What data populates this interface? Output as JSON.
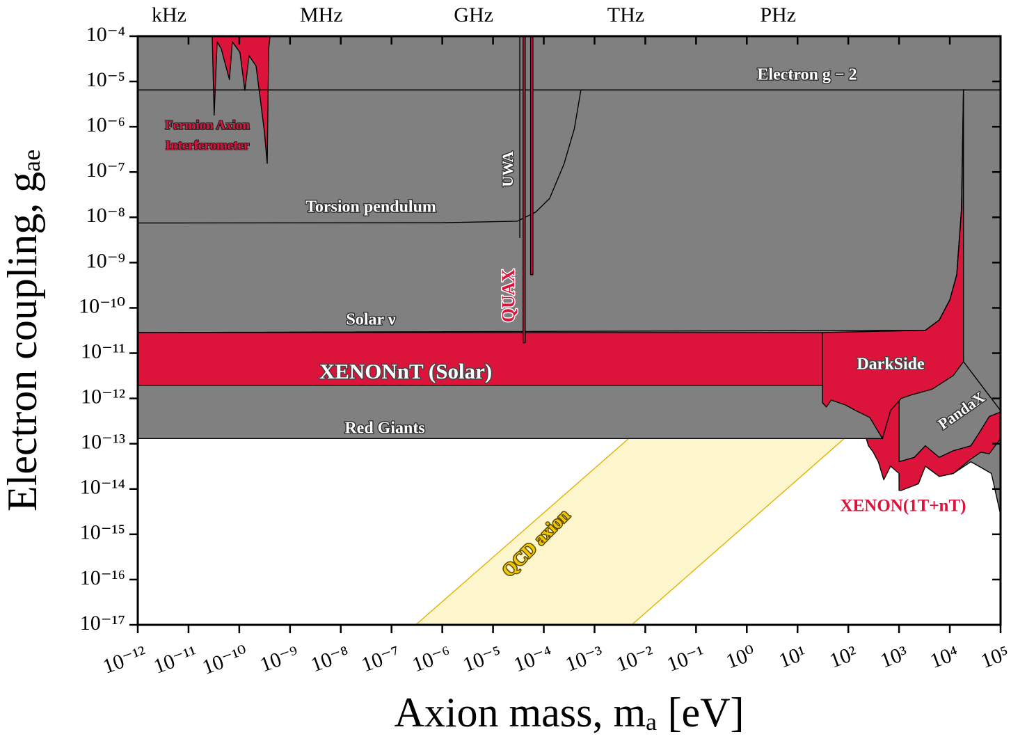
{
  "chart_data": {
    "type": "area",
    "xlabel": "Axion mass, mₐ [eV]",
    "ylabel": "Electron coupling, gₐₑ",
    "xscale": "log",
    "yscale": "log",
    "xlim": [
      1e-12,
      100000.0
    ],
    "ylim": [
      1e-17,
      0.0001
    ],
    "xticks": [
      {
        "value": 1e-12,
        "label": "10⁻¹²"
      },
      {
        "value": 1e-11,
        "label": "10⁻¹¹"
      },
      {
        "value": 1e-10,
        "label": "10⁻¹⁰"
      },
      {
        "value": 1e-09,
        "label": "10⁻⁹"
      },
      {
        "value": 1e-08,
        "label": "10⁻⁸"
      },
      {
        "value": 1e-07,
        "label": "10⁻⁷"
      },
      {
        "value": 1e-06,
        "label": "10⁻⁶"
      },
      {
        "value": 1e-05,
        "label": "10⁻⁵"
      },
      {
        "value": 0.0001,
        "label": "10⁻⁴"
      },
      {
        "value": 0.001,
        "label": "10⁻³"
      },
      {
        "value": 0.01,
        "label": "10⁻²"
      },
      {
        "value": 0.1,
        "label": "10⁻¹"
      },
      {
        "value": 1,
        "label": "10⁰"
      },
      {
        "value": 10,
        "label": "10¹"
      },
      {
        "value": 100,
        "label": "10²"
      },
      {
        "value": 1000,
        "label": "10³"
      },
      {
        "value": 10000,
        "label": "10⁴"
      },
      {
        "value": 100000,
        "label": "10⁵"
      }
    ],
    "yticks": [
      {
        "value": 1e-17,
        "label": "10⁻¹⁷"
      },
      {
        "value": 1e-16,
        "label": "10⁻¹⁶"
      },
      {
        "value": 1e-15,
        "label": "10⁻¹⁵"
      },
      {
        "value": 1e-14,
        "label": "10⁻¹⁴"
      },
      {
        "value": 1e-13,
        "label": "10⁻¹³"
      },
      {
        "value": 1e-12,
        "label": "10⁻¹²"
      },
      {
        "value": 1e-11,
        "label": "10⁻¹¹"
      },
      {
        "value": 1e-10,
        "label": "10⁻¹⁰"
      },
      {
        "value": 1e-09,
        "label": "10⁻⁹"
      },
      {
        "value": 1e-08,
        "label": "10⁻⁸"
      },
      {
        "value": 1e-07,
        "label": "10⁻⁷"
      },
      {
        "value": 1e-06,
        "label": "10⁻⁶"
      },
      {
        "value": 1e-05,
        "label": "10⁻⁵"
      },
      {
        "value": 0.0001,
        "label": "10⁻⁴"
      }
    ],
    "x2ticks": [
      {
        "value": 4.136e-12,
        "label": "kHz"
      },
      {
        "value": 4.136e-09,
        "label": "MHz"
      },
      {
        "value": 4.136e-06,
        "label": "GHz"
      },
      {
        "value": 0.004136,
        "label": "THz"
      },
      {
        "value": 4.136,
        "label": "PHz"
      }
    ],
    "series": [
      {
        "name": "QCD axion",
        "style": "fill",
        "color": "#fdf6cc",
        "edge": "#e0b400",
        "x": [
          3e-07,
          0.0047,
          83,
          0.0054
        ],
        "values": [
          1e-17,
          1.3e-13,
          1.3e-13,
          1e-17
        ]
      },
      {
        "name": "Red Giants",
        "style": "fill",
        "color": "#808080",
        "edge": "#000000",
        "x": [
          1e-12,
          100000.0,
          100000.0,
          1e-12
        ],
        "values": [
          1.3e-13,
          1.3e-13,
          0.0001,
          0.0001
        ]
      },
      {
        "name": "XENONnT (Solar)",
        "style": "fill",
        "color": "#dc143c",
        "edge": "#000000",
        "x": [
          1e-12,
          31,
          31,
          1e-12
        ],
        "values": [
          1.95e-12,
          1.95e-12,
          2.85e-11,
          2.85e-11
        ]
      },
      {
        "name": "Fermion Axion Interferometer",
        "style": "fill",
        "color": "#dc143c",
        "edge": "#000000",
        "x": [
          2.93e-11,
          3.2e-11,
          3.66e-11,
          4.4e-11,
          5e-11,
          6.4e-11,
          7.3e-11,
          1.03e-10,
          1.29e-10,
          1.56e-10,
          2.14e-10,
          2.67e-10,
          3.13e-10,
          3.55e-10,
          3.8e-10,
          4.03e-10
        ],
        "values": [
          0.0001,
          1.8e-06,
          7.5e-05,
          5.3e-05,
          3.1e-05,
          1.1e-05,
          7.5e-05,
          4.4e-05,
          6.3e-06,
          3.7e-05,
          2.2e-05,
          3.2e-06,
          7.6e-07,
          1.55e-07,
          5.3e-05,
          0.0001
        ]
      },
      {
        "name": "PandaX",
        "style": "fill",
        "color": "#808080",
        "edge": "#000000",
        "x": [
          1000,
          18600,
          100000,
          100000,
          66000,
          41000,
          26000,
          11700,
          6200,
          3300,
          2400,
          1000
        ],
        "values": [
          1e-12,
          6.5e-12,
          5.4e-13,
          2.7e-15,
          2.2e-14,
          3e-14,
          4e-14,
          2.2e-14,
          1.9e-14,
          3.2e-14,
          1.3e-14,
          1.6e-14
        ]
      },
      {
        "name": "XENON(1T+nT)",
        "style": "fill",
        "color": "#dc143c",
        "edge": "#000000",
        "x": [
          226,
          470,
          680,
          1000,
          1000,
          2000,
          3300,
          6200,
          11700,
          26000,
          41000,
          60000,
          100000,
          100000,
          60000,
          41000,
          26000,
          11700,
          6200,
          3300,
          2400,
          1100,
          1000,
          1000,
          680,
          500,
          390,
          310,
          250
        ],
        "values": [
          1.3e-13,
          1.3e-13,
          5.4e-13,
          1e-12,
          4e-14,
          5e-14,
          9e-14,
          5e-14,
          7e-14,
          9e-14,
          2e-13,
          4e-13,
          5e-13,
          1.3e-13,
          6e-14,
          6.5e-14,
          4.6e-14,
          2.2e-14,
          1.9e-14,
          3.2e-14,
          1.3e-14,
          9.3e-15,
          9.3e-15,
          2.2e-14,
          3.2e-14,
          1.6e-14,
          4e-14,
          6.5e-14,
          9e-14
        ]
      },
      {
        "name": "DarkSide",
        "style": "fill",
        "color": "#dc143c",
        "edge": "#000000",
        "x": [
          31,
          3300,
          6200,
          10000,
          13700,
          17000,
          18600,
          18600,
          11700,
          4500,
          1760,
          1100,
          680,
          470,
          265,
          140,
          87,
          46,
          37,
          31
        ],
        "values": [
          2.85e-11,
          3.2e-11,
          5.4e-11,
          1.5e-10,
          5.4e-10,
          1.5e-08,
          6.6e-06,
          6.5e-12,
          3.2e-12,
          1.6e-12,
          1.2e-12,
          1e-12,
          5.4e-13,
          1.3e-13,
          3.8e-13,
          5.4e-13,
          7.2e-13,
          9.2e-13,
          6.5e-13,
          8e-13
        ]
      },
      {
        "name": "Solar ν",
        "style": "line",
        "color": "#000000",
        "x": [
          1e-12,
          3300,
          6200,
          10000,
          13700,
          17000,
          18600
        ],
        "values": [
          2.85e-11,
          3.2e-11,
          5.4e-11,
          1.5e-10,
          5.4e-10,
          1.5e-08,
          6.6e-06
        ]
      },
      {
        "name": "Electron g − 2",
        "style": "line",
        "color": "#000000",
        "x": [
          1e-12,
          100000.0
        ],
        "values": [
          6.5e-06,
          6.5e-06
        ]
      },
      {
        "name": "Torsion pendulum",
        "style": "line",
        "color": "#000000",
        "x": [
          1e-12,
          1e-06,
          3e-05,
          6.9e-05,
          0.00013,
          0.00025,
          0.0004,
          0.00054
        ],
        "values": [
          7.5e-09,
          7.6e-09,
          8.2e-09,
          1.3e-08,
          2.6e-08,
          1.5e-07,
          9e-07,
          6.6e-06
        ]
      },
      {
        "name": "UWA",
        "style": "line",
        "color": "#000000",
        "x": [
          3.37e-05,
          3.37e-05
        ],
        "values": [
          0.0001,
          3.5e-09
        ]
      },
      {
        "name": "QUAX",
        "style": "fill",
        "color": "#dc143c",
        "edge": "#000000",
        "x": [
          3.9e-05,
          4.3e-05,
          4.3e-05,
          3.9e-05,
          null,
          5.5e-05,
          6.1e-05,
          6.1e-05,
          5.5e-05
        ],
        "values": [
          0.0001,
          0.0001,
          1.7e-11,
          1.7e-11,
          null,
          0.0001,
          0.0001,
          5.4e-10,
          5.4e-10
        ]
      }
    ]
  }
}
